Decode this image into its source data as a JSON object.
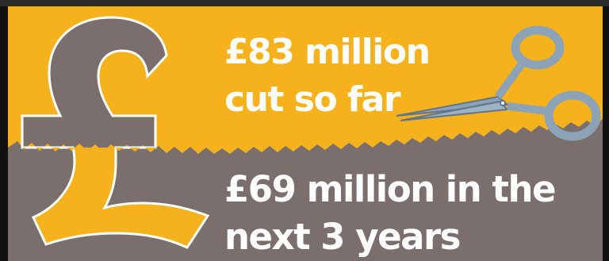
{
  "colors": {
    "orange": "#F5B21C",
    "grey": "#7B6F6D",
    "text": "#FFFFFF",
    "scissors": "#8CA3B7",
    "border": "#111111"
  },
  "icons": [
    "pound-sign-icon",
    "scissors-icon"
  ],
  "top_panel": {
    "line1": "£83 million",
    "line2": "cut so far"
  },
  "bottom_panel": {
    "line1": "£69 million in the",
    "line2": "next 3 years"
  }
}
